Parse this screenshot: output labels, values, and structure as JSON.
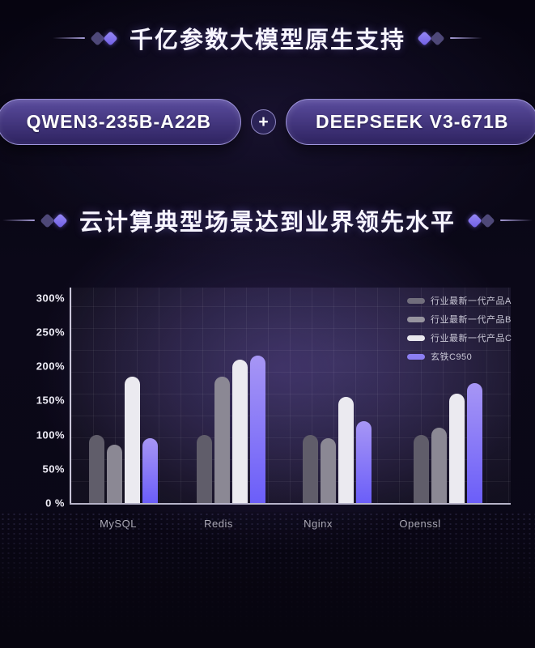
{
  "section1": {
    "title": "千亿参数大模型原生支持",
    "plus": "+",
    "pills": [
      {
        "label": "QWEN3-235B-A22B"
      },
      {
        "label": "DEEPSEEK V3-671B"
      }
    ]
  },
  "section2": {
    "title": "云计算典型场景达到业界领先水平"
  },
  "colors": {
    "accent_purple": "#8b7ef2",
    "pill_border": "#baaff5",
    "title_text": "#f7f5ff"
  },
  "chart_data": {
    "type": "bar",
    "title": "",
    "xlabel": "",
    "ylabel": "",
    "categories": [
      "MySQL",
      "Redis",
      "Nginx",
      "Openssl"
    ],
    "series": [
      {
        "name": "行业最新一代产品A",
        "color": "#605d6a",
        "legend_color": "#716e7c",
        "values": [
          100,
          100,
          100,
          100
        ]
      },
      {
        "name": "行业最新一代产品B",
        "color": "#8b8894",
        "legend_color": "#97949f",
        "values": [
          85,
          185,
          95,
          110
        ]
      },
      {
        "name": "行业最新一代产品C",
        "color": "#ebeaf0",
        "legend_color": "#e9e8ee",
        "values": [
          185,
          210,
          155,
          160
        ]
      },
      {
        "name": "玄铁C950",
        "color": "#8b7ef2",
        "gradient": [
          "#a796f5",
          "#6b5ef9"
        ],
        "legend_color": "#8b7ef2",
        "values": [
          95,
          215,
          120,
          175
        ]
      }
    ],
    "ylim": [
      0,
      315
    ],
    "yticks": [
      0,
      50,
      100,
      150,
      200,
      250,
      300
    ],
    "ytick_labels": [
      "0 %",
      "50%",
      "100%",
      "150%",
      "200%",
      "250%",
      "300%"
    ],
    "unit": "%",
    "grid": true,
    "legend_position": "top-right"
  }
}
